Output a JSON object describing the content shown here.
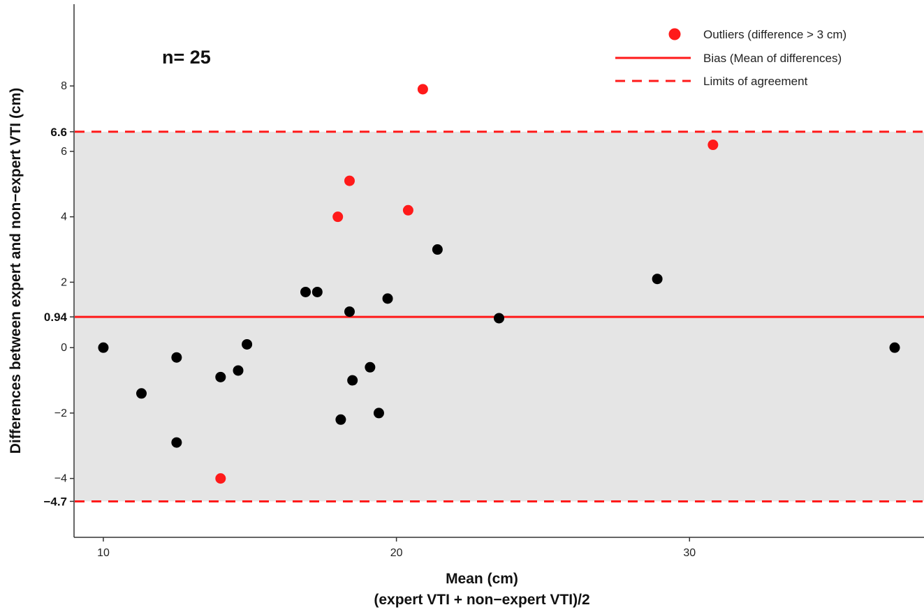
{
  "chart_data": {
    "type": "scatter",
    "xlabel": "Mean (cm)",
    "xlabel_line2": "(expert VTI + non−expert VTI)/2",
    "ylabel": "Differences between expert and non−expert VTI (cm)",
    "annotation": "n= 25",
    "xlim": [
      9,
      38
    ],
    "ylim": [
      -5.8,
      10.5
    ],
    "x_ticks": [
      10,
      20,
      30
    ],
    "y_ticks": [
      -4,
      -2,
      0,
      2,
      4,
      6,
      8
    ],
    "y_tick_labels": [
      "−4",
      "−2",
      "0",
      "2",
      "4",
      "6",
      "8"
    ],
    "bias": {
      "value": 0.94,
      "label": "0.94"
    },
    "limits_of_agreement": {
      "upper": 6.6,
      "upper_label": "6.6",
      "lower": -4.7,
      "lower_label": "−4.7"
    },
    "shade_between_limits": true,
    "grid": false,
    "legend_position": "top-right",
    "legend": {
      "outliers": "Outliers (difference > 3 cm)",
      "bias": "Bias (Mean of differences)",
      "limits": "Limits of agreement"
    },
    "colors": {
      "normal_point": "#000000",
      "outlier_point": "#ff1a1a",
      "bias_line": "#ff1a1a",
      "limit_line": "#ff1a1a",
      "band_fill": "#e5e5e5"
    },
    "points": [
      {
        "x": 10.0,
        "y": 0.0,
        "outlier": false
      },
      {
        "x": 11.3,
        "y": -1.4,
        "outlier": false
      },
      {
        "x": 12.5,
        "y": -0.3,
        "outlier": false
      },
      {
        "x": 12.5,
        "y": -2.9,
        "outlier": false
      },
      {
        "x": 14.0,
        "y": -0.9,
        "outlier": false
      },
      {
        "x": 14.0,
        "y": -4.0,
        "outlier": true
      },
      {
        "x": 14.6,
        "y": -0.7,
        "outlier": false
      },
      {
        "x": 14.9,
        "y": 0.1,
        "outlier": false
      },
      {
        "x": 16.9,
        "y": 1.7,
        "outlier": false
      },
      {
        "x": 17.3,
        "y": 1.7,
        "outlier": false
      },
      {
        "x": 18.0,
        "y": 4.0,
        "outlier": true
      },
      {
        "x": 18.1,
        "y": -2.2,
        "outlier": false
      },
      {
        "x": 18.4,
        "y": 5.1,
        "outlier": true
      },
      {
        "x": 18.4,
        "y": 1.1,
        "outlier": false
      },
      {
        "x": 18.5,
        "y": -1.0,
        "outlier": false
      },
      {
        "x": 19.1,
        "y": -0.6,
        "outlier": false
      },
      {
        "x": 19.4,
        "y": -2.0,
        "outlier": false
      },
      {
        "x": 19.7,
        "y": 1.5,
        "outlier": false
      },
      {
        "x": 20.4,
        "y": 4.2,
        "outlier": true
      },
      {
        "x": 20.9,
        "y": 7.9,
        "outlier": true
      },
      {
        "x": 21.4,
        "y": 3.0,
        "outlier": false
      },
      {
        "x": 23.5,
        "y": 0.9,
        "outlier": false
      },
      {
        "x": 28.9,
        "y": 2.1,
        "outlier": false
      },
      {
        "x": 30.8,
        "y": 6.2,
        "outlier": true
      },
      {
        "x": 37.0,
        "y": 0.0,
        "outlier": false
      }
    ]
  }
}
